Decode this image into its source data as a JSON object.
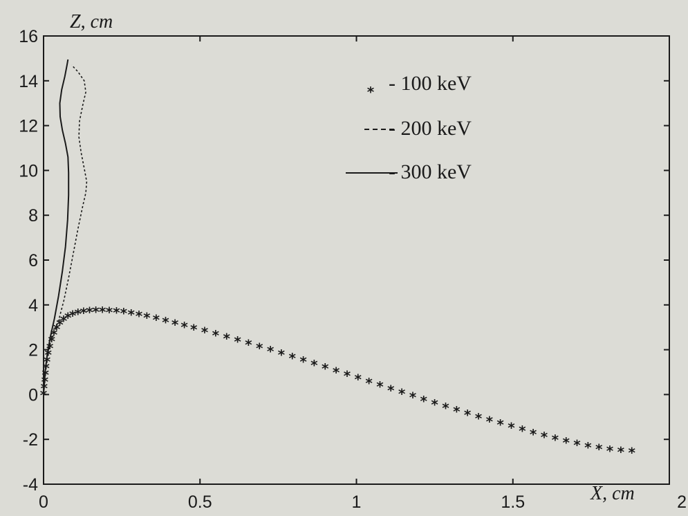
{
  "chart_data": {
    "type": "line",
    "title": "",
    "xlabel": "X, cm",
    "ylabel": "Z, cm",
    "xlim": [
      0,
      2
    ],
    "ylim": [
      -4,
      16
    ],
    "xticks": [
      "0",
      "0.5",
      "1",
      "1.5",
      "2"
    ],
    "yticks": [
      "-4",
      "-2",
      "0",
      "2",
      "4",
      "6",
      "8",
      "10",
      "12",
      "14",
      "16"
    ],
    "grid": false,
    "legend_placement": "top-right",
    "colors": {
      "ink": "#1a1a1a",
      "background": "#dcdcd6"
    },
    "series": [
      {
        "name": "- 100 keV",
        "marker": "*",
        "style": "markers",
        "points": [
          [
            0.0,
            0.0
          ],
          [
            0.002,
            0.3
          ],
          [
            0.004,
            0.6
          ],
          [
            0.006,
            0.9
          ],
          [
            0.008,
            1.2
          ],
          [
            0.011,
            1.5
          ],
          [
            0.015,
            1.8
          ],
          [
            0.02,
            2.1
          ],
          [
            0.026,
            2.4
          ],
          [
            0.033,
            2.7
          ],
          [
            0.042,
            2.95
          ],
          [
            0.052,
            3.15
          ],
          [
            0.064,
            3.32
          ],
          [
            0.078,
            3.45
          ],
          [
            0.093,
            3.55
          ],
          [
            0.11,
            3.62
          ],
          [
            0.128,
            3.67
          ],
          [
            0.147,
            3.7
          ],
          [
            0.167,
            3.71
          ],
          [
            0.188,
            3.71
          ],
          [
            0.21,
            3.7
          ],
          [
            0.233,
            3.68
          ],
          [
            0.256,
            3.65
          ],
          [
            0.28,
            3.6
          ],
          [
            0.305,
            3.53
          ],
          [
            0.33,
            3.45
          ],
          [
            0.36,
            3.36
          ],
          [
            0.39,
            3.26
          ],
          [
            0.42,
            3.15
          ],
          [
            0.45,
            3.04
          ],
          [
            0.48,
            2.93
          ],
          [
            0.515,
            2.8
          ],
          [
            0.55,
            2.67
          ],
          [
            0.585,
            2.53
          ],
          [
            0.62,
            2.39
          ],
          [
            0.655,
            2.25
          ],
          [
            0.69,
            2.1
          ],
          [
            0.725,
            1.95
          ],
          [
            0.76,
            1.8
          ],
          [
            0.795,
            1.65
          ],
          [
            0.83,
            1.5
          ],
          [
            0.865,
            1.34
          ],
          [
            0.9,
            1.18
          ],
          [
            0.935,
            1.02
          ],
          [
            0.97,
            0.86
          ],
          [
            1.005,
            0.7
          ],
          [
            1.04,
            0.54
          ],
          [
            1.075,
            0.38
          ],
          [
            1.11,
            0.22
          ],
          [
            1.145,
            0.06
          ],
          [
            1.18,
            -0.1
          ],
          [
            1.215,
            -0.26
          ],
          [
            1.25,
            -0.42
          ],
          [
            1.285,
            -0.58
          ],
          [
            1.32,
            -0.73
          ],
          [
            1.355,
            -0.88
          ],
          [
            1.39,
            -1.03
          ],
          [
            1.425,
            -1.18
          ],
          [
            1.46,
            -1.32
          ],
          [
            1.495,
            -1.46
          ],
          [
            1.53,
            -1.6
          ],
          [
            1.565,
            -1.74
          ],
          [
            1.6,
            -1.87
          ],
          [
            1.635,
            -2.0
          ],
          [
            1.67,
            -2.12
          ],
          [
            1.705,
            -2.23
          ],
          [
            1.74,
            -2.33
          ],
          [
            1.775,
            -2.41
          ],
          [
            1.81,
            -2.48
          ],
          [
            1.845,
            -2.53
          ],
          [
            1.88,
            -2.57
          ]
        ]
      },
      {
        "name": "- 200 keV",
        "style": "dashed",
        "points": [
          [
            0.0,
            0.0
          ],
          [
            0.003,
            0.8
          ],
          [
            0.01,
            1.6
          ],
          [
            0.02,
            2.2
          ],
          [
            0.035,
            2.8
          ],
          [
            0.05,
            3.4
          ],
          [
            0.065,
            4.2
          ],
          [
            0.08,
            5.2
          ],
          [
            0.095,
            6.3
          ],
          [
            0.11,
            7.4
          ],
          [
            0.125,
            8.4
          ],
          [
            0.135,
            9.0
          ],
          [
            0.138,
            9.5
          ],
          [
            0.13,
            10.1
          ],
          [
            0.12,
            10.8
          ],
          [
            0.113,
            11.5
          ],
          [
            0.115,
            12.2
          ],
          [
            0.125,
            12.9
          ],
          [
            0.135,
            13.5
          ],
          [
            0.13,
            14.0
          ],
          [
            0.11,
            14.4
          ],
          [
            0.09,
            14.7
          ]
        ]
      },
      {
        "name": "- 300 keV",
        "style": "solid",
        "points": [
          [
            0.0,
            0.0
          ],
          [
            0.005,
            1.0
          ],
          [
            0.012,
            1.8
          ],
          [
            0.022,
            2.6
          ],
          [
            0.035,
            3.4
          ],
          [
            0.048,
            4.4
          ],
          [
            0.06,
            5.5
          ],
          [
            0.07,
            6.6
          ],
          [
            0.077,
            7.8
          ],
          [
            0.08,
            8.9
          ],
          [
            0.08,
            9.9
          ],
          [
            0.078,
            10.6
          ],
          [
            0.07,
            11.2
          ],
          [
            0.06,
            11.8
          ],
          [
            0.053,
            12.4
          ],
          [
            0.052,
            13.0
          ],
          [
            0.058,
            13.6
          ],
          [
            0.068,
            14.2
          ],
          [
            0.075,
            14.7
          ],
          [
            0.078,
            14.95
          ]
        ]
      }
    ]
  }
}
